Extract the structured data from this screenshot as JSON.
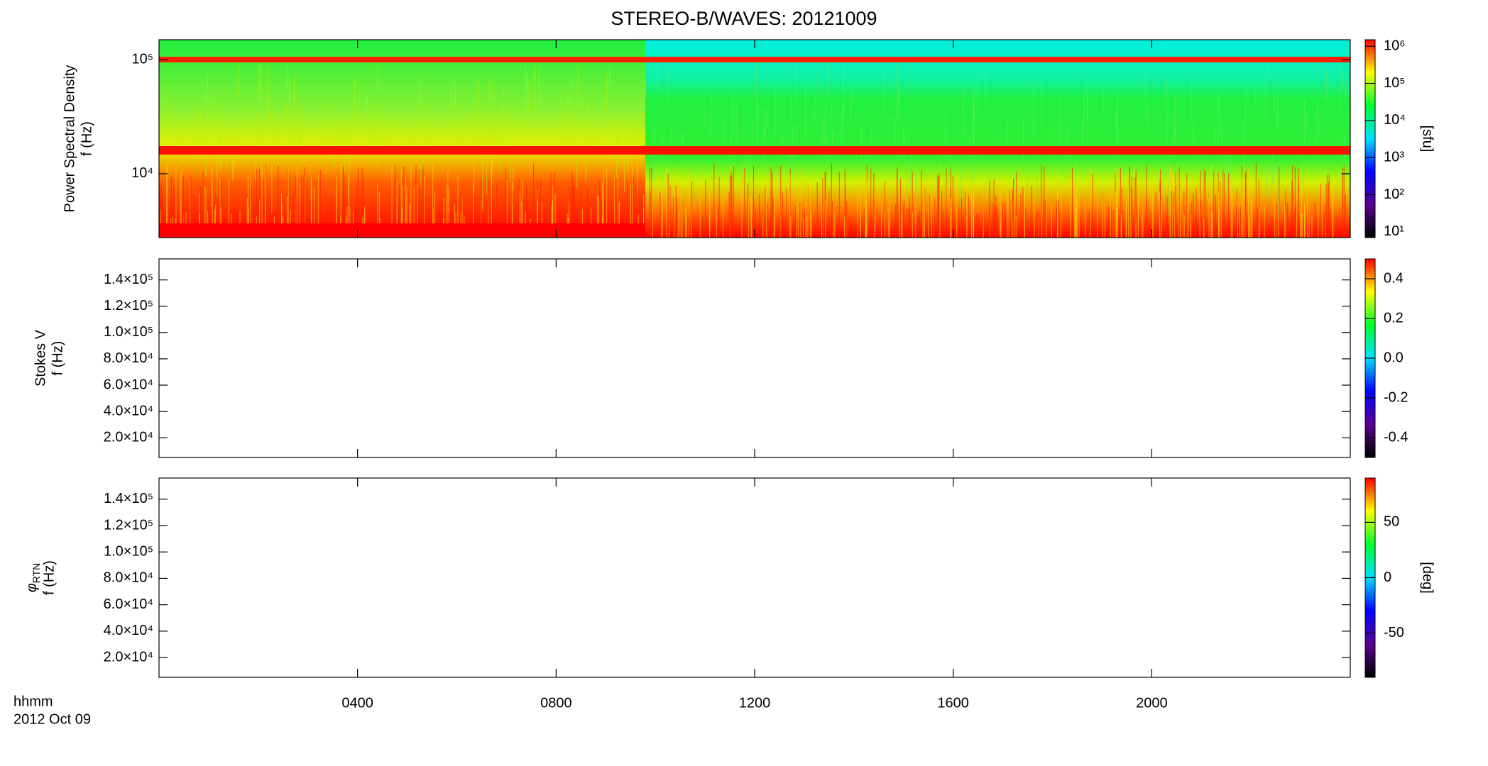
{
  "chart_data": [
    {
      "type": "spectrogram",
      "title": "STEREO-B/WAVES: 20121009",
      "ylabel": [
        "Power Spectral Density",
        "f (Hz)"
      ],
      "ylog": true,
      "ylim": [
        2750,
        150000
      ],
      "yticks": [
        {
          "value": 10000,
          "label": "10⁴"
        },
        {
          "value": 100000,
          "label": "10⁵"
        }
      ],
      "colorbar": {
        "log": true,
        "ylim": [
          7,
          1500000
        ],
        "label": "[sfu]",
        "yticks": [
          {
            "value": 10,
            "label": "10¹"
          },
          {
            "value": 100,
            "label": "10²"
          },
          {
            "value": 1000,
            "label": "10³"
          },
          {
            "value": 10000,
            "label": "10⁴"
          },
          {
            "value": 100000,
            "label": "10⁵"
          },
          {
            "value": 1000000,
            "label": "10⁶"
          }
        ]
      }
    },
    {
      "type": "spectrogram",
      "ylabel": [
        "Stokes V",
        "f (Hz)"
      ],
      "ylog": false,
      "ylim": [
        5000,
        156000
      ],
      "yticks": [
        {
          "value": 20000,
          "label": "2.0×10⁴"
        },
        {
          "value": 40000,
          "label": "4.0×10⁴"
        },
        {
          "value": 60000,
          "label": "6.0×10⁴"
        },
        {
          "value": 80000,
          "label": "8.0×10⁴"
        },
        {
          "value": 100000,
          "label": "1.0×10⁵"
        },
        {
          "value": 120000,
          "label": "1.2×10⁵"
        },
        {
          "value": 140000,
          "label": "1.4×10⁵"
        }
      ],
      "colorbar": {
        "log": false,
        "ylim": [
          -0.5,
          0.5
        ],
        "yticks": [
          -0.4,
          -0.2,
          {
            "value": 0,
            "label": "0.0"
          },
          0.2,
          0.4
        ]
      }
    },
    {
      "type": "spectrogram",
      "ylabel_symbol": "φ",
      "ylabel_subscript": "RTN",
      "ylabel": [
        "f (Hz)"
      ],
      "ylog": false,
      "ylim": [
        5000,
        156000
      ],
      "yticks": [
        {
          "value": 20000,
          "label": "2.0×10⁴"
        },
        {
          "value": 40000,
          "label": "4.0×10⁴"
        },
        {
          "value": 60000,
          "label": "6.0×10⁴"
        },
        {
          "value": 80000,
          "label": "8.0×10⁴"
        },
        {
          "value": 100000,
          "label": "1.0×10⁵"
        },
        {
          "value": 120000,
          "label": "1.2×10⁵"
        },
        {
          "value": 140000,
          "label": "1.4×10⁵"
        }
      ],
      "colorbar": {
        "log": false,
        "ylim": [
          -90,
          90
        ],
        "label": "[deg]",
        "yticks": [
          -50,
          0,
          50
        ]
      },
      "xlim": [
        0,
        24
      ],
      "xlabel": [
        "hhmm",
        "2012 Oct 09"
      ],
      "xticks": [
        {
          "value": 4,
          "label": "0400"
        },
        {
          "value": 8,
          "label": "0800"
        },
        {
          "value": 12,
          "label": "1200"
        },
        {
          "value": 16,
          "label": "1600"
        },
        {
          "value": 20,
          "label": "2000"
        }
      ]
    }
  ],
  "colormap": [
    "#000000",
    "#5a0090",
    "#0000ff",
    "#00e0ff",
    "#00ff30",
    "#ffff00",
    "#ff0000"
  ]
}
